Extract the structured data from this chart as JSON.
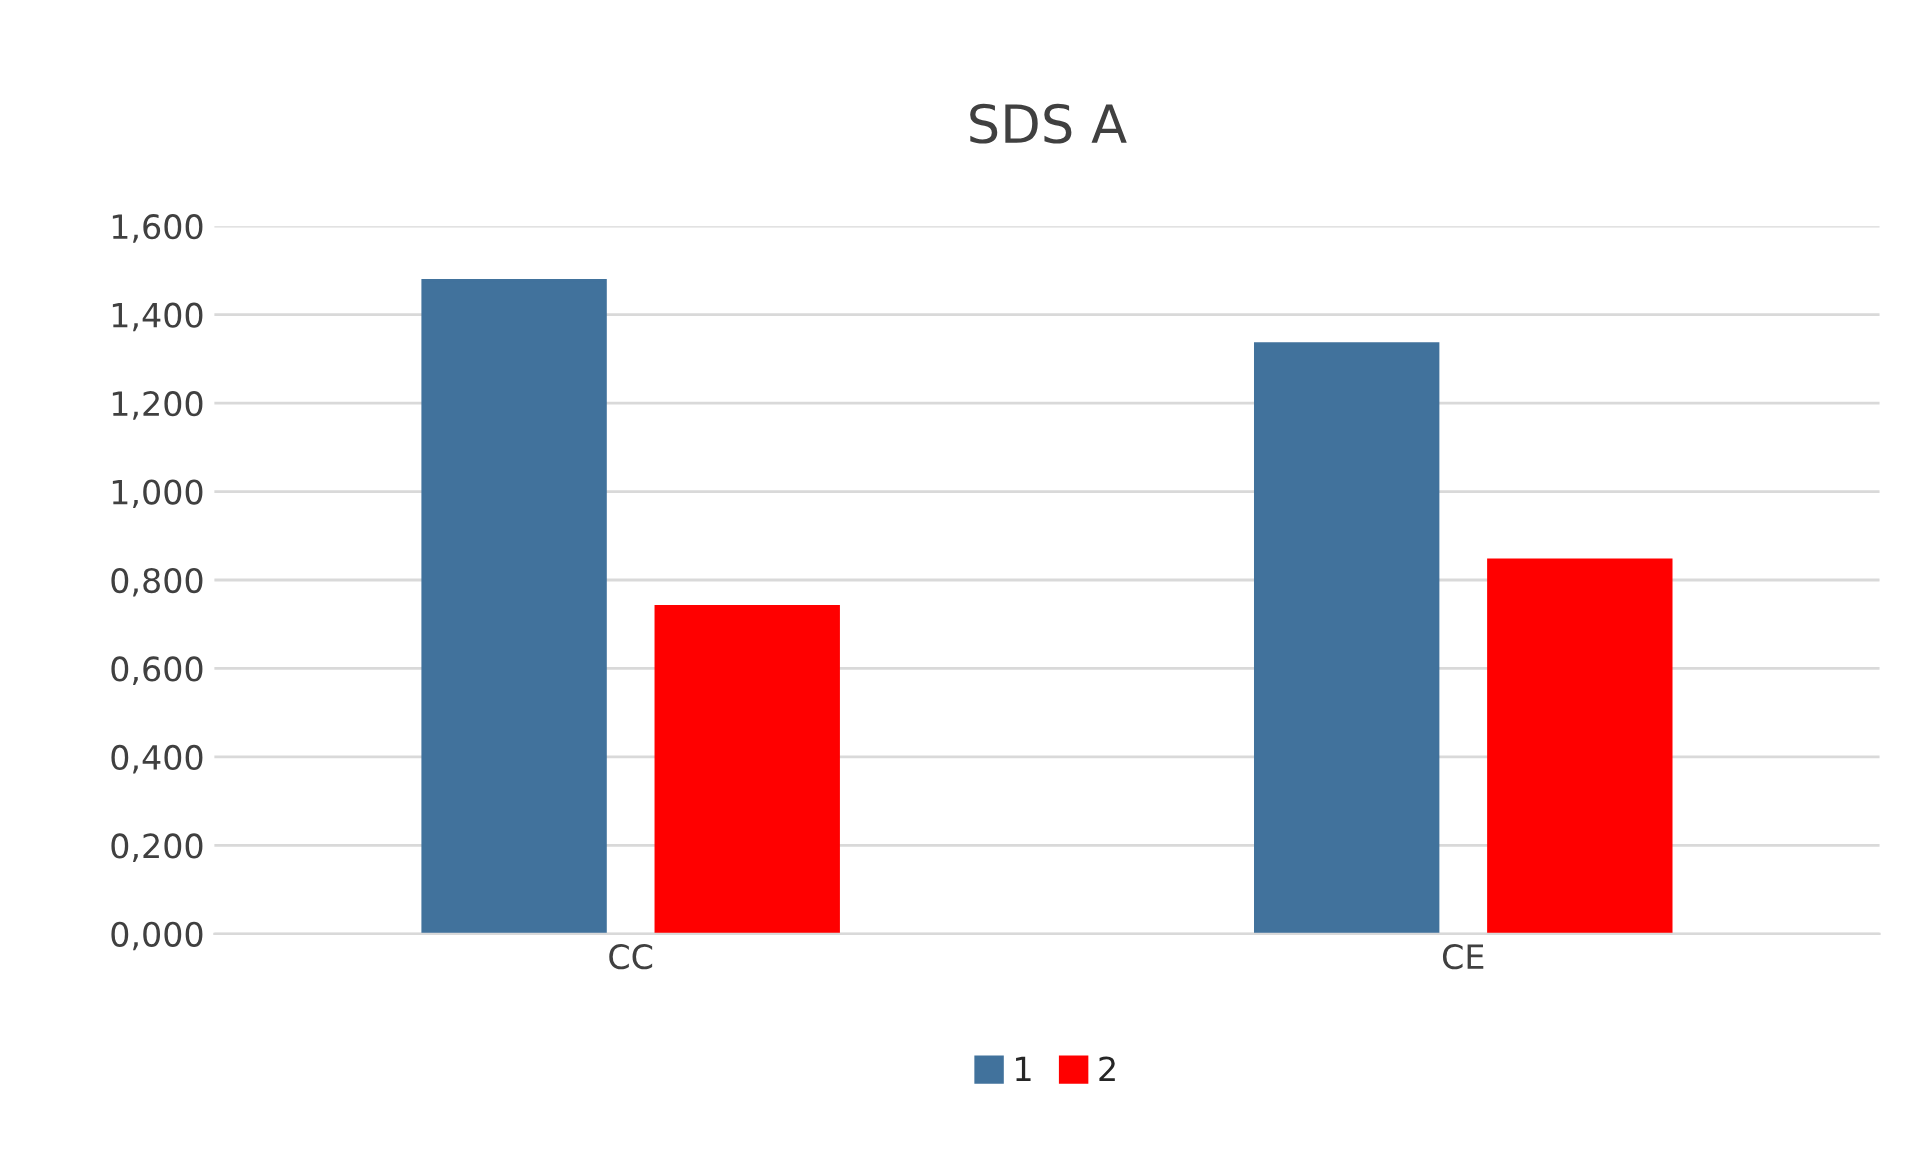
{
  "chart_data": {
    "type": "bar",
    "title": "SDS A",
    "categories": [
      "CC",
      "CE"
    ],
    "series": [
      {
        "name": "1",
        "color": "#41729c",
        "values": [
          1.478,
          1.335
        ]
      },
      {
        "name": "2",
        "color": "#ff0000",
        "values": [
          0.741,
          0.846
        ]
      }
    ],
    "ylim": [
      0,
      1.6
    ],
    "yticks": [
      {
        "value": 0,
        "label": "0,000"
      },
      {
        "value": 0.2,
        "label": "0,200"
      },
      {
        "value": 0.4,
        "label": "0,400"
      },
      {
        "value": 0.6,
        "label": "0,600"
      },
      {
        "value": 0.8,
        "label": "0,800"
      },
      {
        "value": 1.0,
        "label": "1,000"
      },
      {
        "value": 1.2,
        "label": "1,200"
      },
      {
        "value": 1.4,
        "label": "1,400"
      },
      {
        "value": 1.6,
        "label": "1,600"
      }
    ],
    "grid": "y",
    "legend": "bottom"
  }
}
